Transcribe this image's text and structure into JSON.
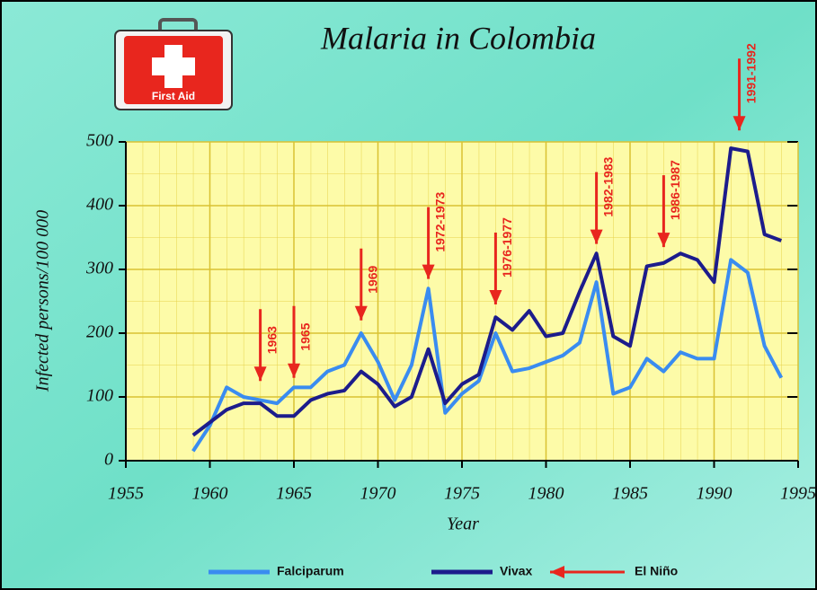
{
  "chart_data": {
    "type": "line",
    "title": "Malaria in Colombia",
    "icon_text": "First Aid",
    "x_label": "Year",
    "y_label": "Infected persons/100 000",
    "x": [
      1959,
      1960,
      1961,
      1962,
      1963,
      1964,
      1965,
      1966,
      1967,
      1968,
      1969,
      1970,
      1971,
      1972,
      1973,
      1974,
      1975,
      1976,
      1977,
      1978,
      1979,
      1980,
      1981,
      1982,
      1983,
      1984,
      1985,
      1986,
      1987,
      1988,
      1989,
      1990,
      1991,
      1992,
      1993,
      1994
    ],
    "series": [
      {
        "name": "Falciparum",
        "color": "#3a8cf0",
        "values": [
          15,
          55,
          115,
          100,
          95,
          90,
          115,
          115,
          140,
          150,
          200,
          155,
          95,
          150,
          270,
          75,
          105,
          125,
          200,
          140,
          145,
          155,
          165,
          185,
          280,
          105,
          115,
          160,
          140,
          170,
          160,
          160,
          315,
          295,
          180,
          130
        ]
      },
      {
        "name": "Vivax",
        "color": "#1c1c8c",
        "values": [
          40,
          60,
          80,
          90,
          90,
          70,
          70,
          95,
          105,
          110,
          140,
          120,
          85,
          100,
          175,
          90,
          120,
          135,
          225,
          205,
          235,
          195,
          200,
          265,
          325,
          195,
          180,
          305,
          310,
          325,
          315,
          280,
          490,
          485,
          355,
          345
        ]
      }
    ],
    "annotation_name": "El Niño",
    "annotation_color": "#e8261e",
    "annotations": [
      {
        "text": "1963",
        "x": 1963,
        "y": 125
      },
      {
        "text": "1965",
        "x": 1965,
        "y": 130
      },
      {
        "text": "1969",
        "x": 1969,
        "y": 220
      },
      {
        "text": "1972-1973",
        "x": 1973,
        "y": 285
      },
      {
        "text": "1976-1977",
        "x": 1977,
        "y": 245
      },
      {
        "text": "1982-1983",
        "x": 1983,
        "y": 340
      },
      {
        "text": "1986-1987",
        "x": 1987,
        "y": 335
      },
      {
        "text": "1991-1992",
        "x": 1991.5,
        "y": 518
      }
    ],
    "xlim": [
      1955,
      1995
    ],
    "xticks": [
      1955,
      1960,
      1965,
      1970,
      1975,
      1980,
      1985,
      1990,
      1995
    ],
    "ylim": [
      0,
      500
    ],
    "yticks": [
      0,
      100,
      200,
      300,
      400,
      500
    ],
    "grid": true
  }
}
